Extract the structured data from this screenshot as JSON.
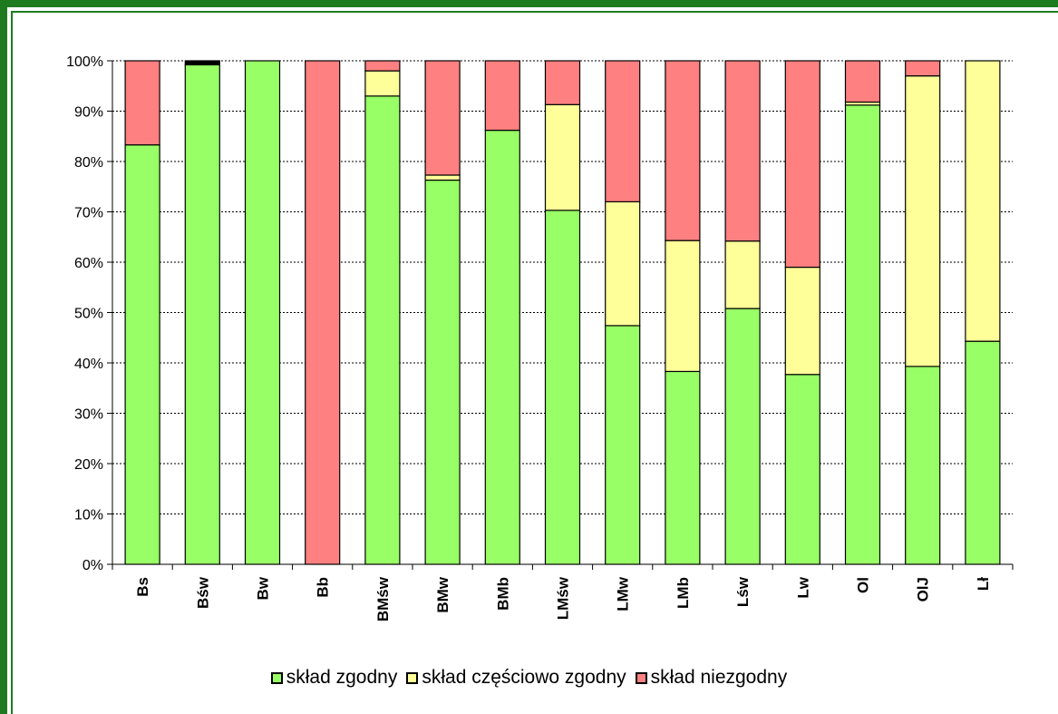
{
  "chart_data": {
    "type": "bar",
    "stacked": true,
    "percent_stacked": true,
    "categories": [
      "Bs",
      "Bśw",
      "Bw",
      "Bb",
      "BMśw",
      "BMw",
      "BMb",
      "LMśw",
      "LMw",
      "LMb",
      "Lśw",
      "Lw",
      "Ol",
      "OlJ",
      "Lł"
    ],
    "series": [
      {
        "name": "skład zgodny",
        "color": "#99ff66",
        "values": [
          83.3,
          99.2,
          100,
          0,
          93,
          76.3,
          86.2,
          70.3,
          47.4,
          38.3,
          50.8,
          37.7,
          91.2,
          39.3,
          44.3
        ]
      },
      {
        "name": "skład częściowo zgodny",
        "color": "#ffff99",
        "values": [
          0,
          0,
          0,
          0,
          5,
          1,
          0,
          21,
          24.6,
          26,
          13.4,
          21.3,
          0.6,
          57.7,
          55.7
        ]
      },
      {
        "name": "skład niezgodny",
        "color": "#ff8080",
        "values": [
          16.7,
          0,
          0,
          100,
          2,
          22.7,
          13.8,
          8.7,
          28,
          35.7,
          35.8,
          41,
          8.2,
          3,
          0
        ]
      },
      {
        "name": "",
        "color": "#000000",
        "values": [
          0,
          0.8,
          0,
          0,
          0,
          0,
          0,
          0,
          0,
          0,
          0,
          0,
          0,
          0,
          0
        ]
      }
    ],
    "ylim": [
      0,
      100
    ],
    "yticks": [
      "0%",
      "10%",
      "20%",
      "30%",
      "40%",
      "50%",
      "60%",
      "70%",
      "80%",
      "90%",
      "100%"
    ],
    "grid": true,
    "legend_position": "bottom"
  }
}
